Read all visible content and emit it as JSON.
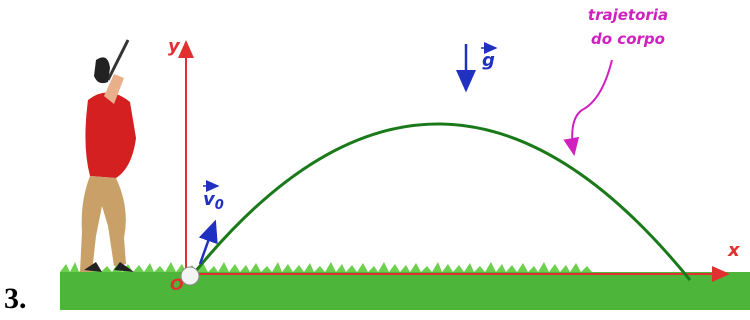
{
  "item_number": "3.",
  "axes": {
    "y": "y",
    "x": "x",
    "origin": "O"
  },
  "vectors": {
    "v0": {
      "symbol": "v",
      "subscript": "0"
    },
    "g": "g"
  },
  "annotation": [
    "trajetoria",
    "do corpo"
  ]
}
